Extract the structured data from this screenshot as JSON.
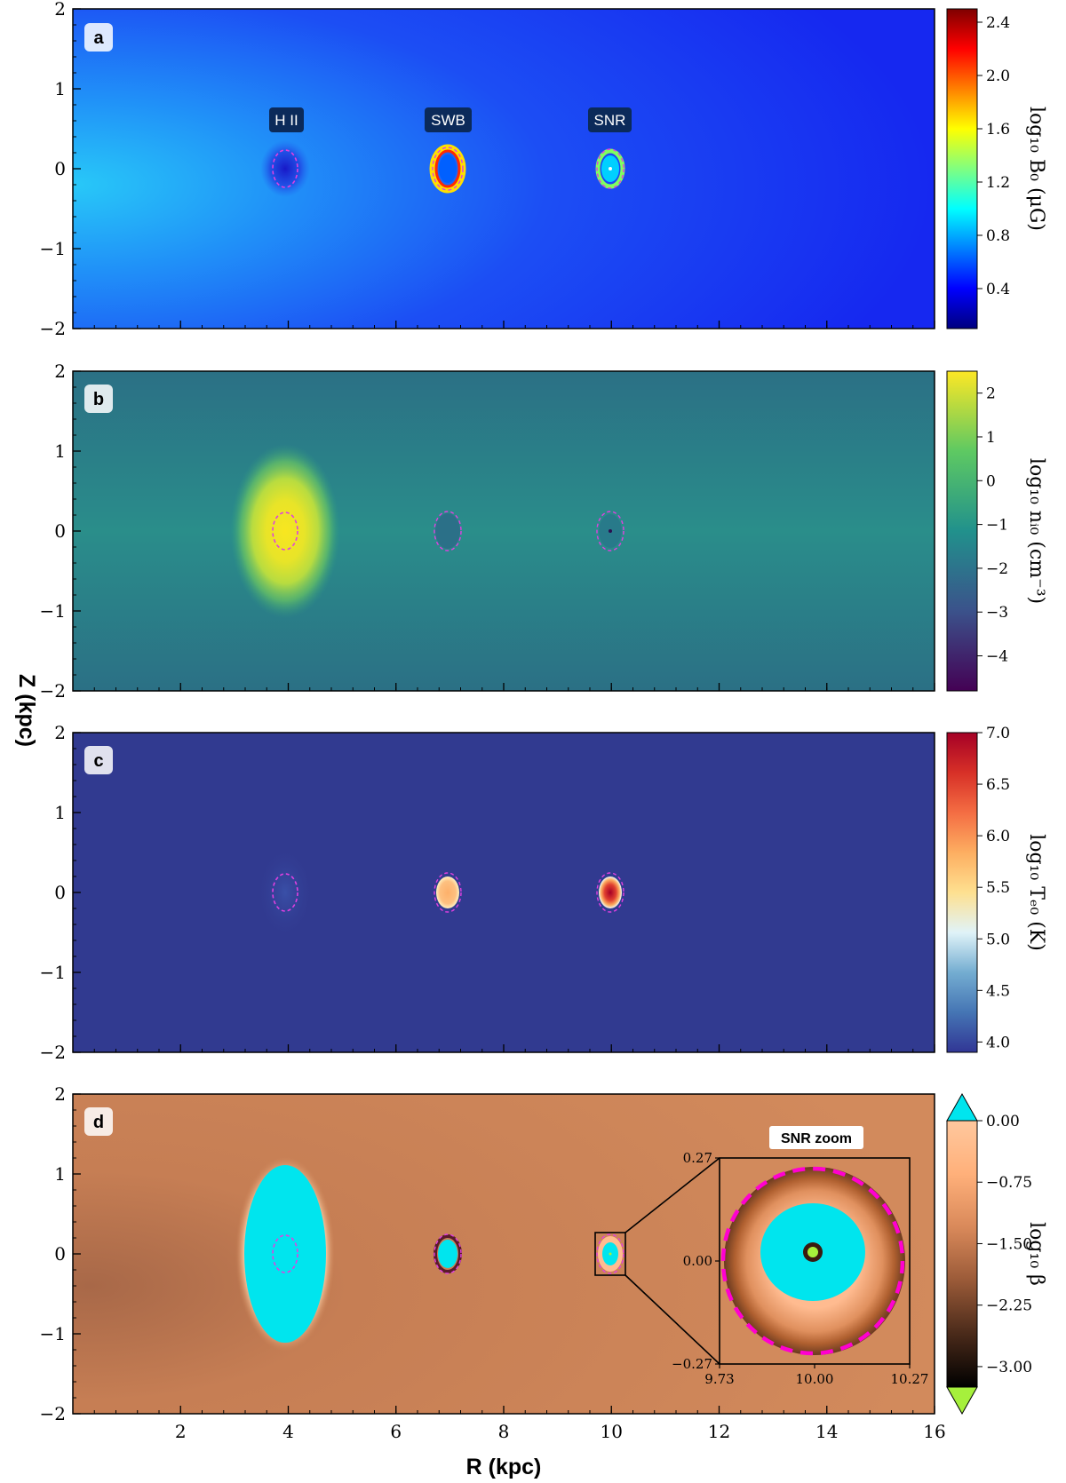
{
  "chart_data": {
    "type": "heatmap",
    "xlabel": "R (kpc)",
    "ylabel": "Z (kpc)",
    "xlim": [
      0,
      16
    ],
    "ylim": [
      -2,
      2
    ],
    "x_ticks": [
      "2",
      "4",
      "6",
      "8",
      "10",
      "12",
      "14",
      "16"
    ],
    "y_ticks": [
      "−2",
      "−1",
      "0",
      "1",
      "2"
    ],
    "sources": [
      {
        "label": "H II",
        "r": 4,
        "z": 0
      },
      {
        "label": "SWB",
        "r": 7,
        "z": 0
      },
      {
        "label": "SNR",
        "r": 10,
        "z": 0
      }
    ],
    "panels": [
      {
        "letter": "a",
        "colorbar_label": "log₁₀ B₀ (μG)",
        "colorbar_ticks": [
          "0.4",
          "0.8",
          "1.2",
          "1.6",
          "2.0",
          "2.4"
        ],
        "colorbar_range": [
          0.1,
          2.5
        ],
        "colormap": [
          "#00007f",
          "#0000ff",
          "#0080ff",
          "#00ffff",
          "#80ff80",
          "#ffff00",
          "#ff8000",
          "#ff0000",
          "#7f0000"
        ],
        "show_source_labels": true
      },
      {
        "letter": "b",
        "colorbar_label": "log₁₀ nᵢ₀ (cm⁻³)",
        "colorbar_ticks": [
          "−4",
          "−3",
          "−2",
          "−1",
          "0",
          "1",
          "2"
        ],
        "colorbar_range": [
          -4.8,
          2.5
        ],
        "colormap": [
          "#440154",
          "#3b528b",
          "#21918c",
          "#5ec962",
          "#fde725"
        ]
      },
      {
        "letter": "c",
        "colorbar_label": "log₁₀ Tₑ₀ (K)",
        "colorbar_ticks": [
          "4.0",
          "4.5",
          "5.0",
          "5.5",
          "6.0",
          "6.5",
          "7.0"
        ],
        "colorbar_range": [
          3.9,
          7.0
        ],
        "colormap": [
          "#313695",
          "#4575b4",
          "#74add1",
          "#e0f3f8",
          "#fee090",
          "#fdae61",
          "#f46d43",
          "#d73027",
          "#a50026"
        ]
      },
      {
        "letter": "d",
        "colorbar_label": "log₁₀ β",
        "colorbar_ticks": [
          "−3.00",
          "−2.25",
          "−1.50",
          "−0.75",
          "0.00"
        ],
        "colorbar_range": [
          -3.25,
          0.0
        ],
        "colormap": [
          "#000000",
          "#4a2a1a",
          "#9a5a38",
          "#d9895a",
          "#ffb07a",
          "#ffc89e"
        ],
        "over_color": "#00e5ee",
        "under_color": "#a6f03c",
        "inset": {
          "title": "SNR zoom",
          "xlim": [
            9.73,
            10.27
          ],
          "ylim": [
            -0.27,
            0.27
          ],
          "x_ticks": [
            "9.73",
            "10.00",
            "10.27"
          ],
          "y_ticks": [
            "−0.27",
            "0.00",
            "0.27"
          ]
        }
      }
    ]
  }
}
